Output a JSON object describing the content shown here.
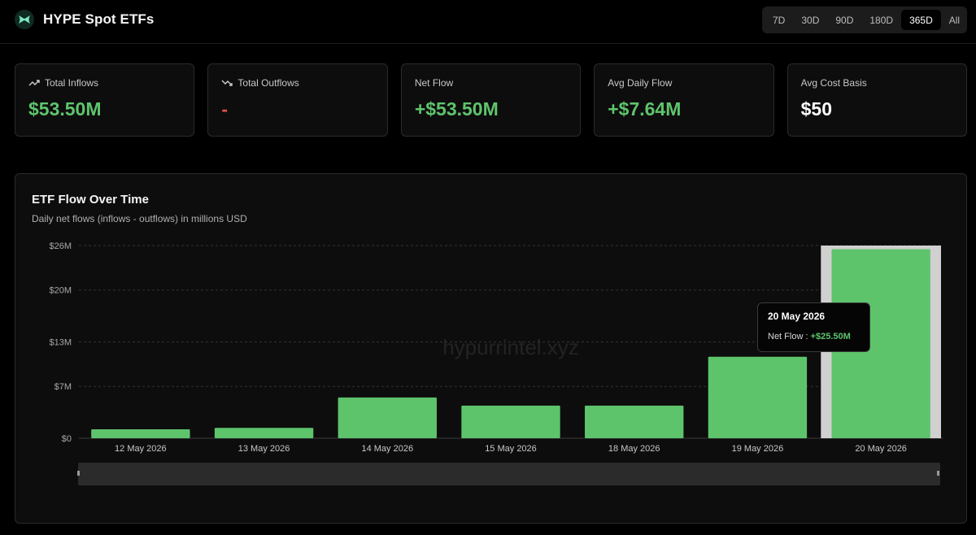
{
  "header": {
    "title": "HYPE Spot ETFs",
    "ranges": [
      "7D",
      "30D",
      "90D",
      "180D",
      "365D",
      "All"
    ],
    "active_range": "365D"
  },
  "cards": [
    {
      "label": "Total Inflows",
      "value": "$53.50M",
      "icon": "trending-up-icon",
      "tone": "green"
    },
    {
      "label": "Total Outflows",
      "value": "-",
      "icon": "trending-down-icon",
      "tone": "red"
    },
    {
      "label": "Net Flow",
      "value": "+$53.50M",
      "icon": "",
      "tone": "green"
    },
    {
      "label": "Avg Daily Flow",
      "value": "+$7.64M",
      "icon": "",
      "tone": "green"
    },
    {
      "label": "Avg Cost Basis",
      "value": "$50",
      "icon": "",
      "tone": "white"
    }
  ],
  "chart": {
    "title": "ETF Flow Over Time",
    "subtitle": "Daily net flows (inflows - outflows) in millions USD",
    "watermark": "hypurrintel.xyz"
  },
  "tooltip": {
    "date": "20 May 2026",
    "label": "Net Flow :",
    "value": "+$25.50M"
  },
  "colors": {
    "bar": "#5ec46c",
    "highlight": "#d0d0d0",
    "background": "#000000",
    "card": "#0d0d0d"
  },
  "chart_data": {
    "type": "bar",
    "categories": [
      "12 May 2026",
      "13 May 2026",
      "14 May 2026",
      "15 May 2026",
      "18 May 2026",
      "19 May 2026",
      "20 May 2026"
    ],
    "series": [
      {
        "values": [
          1.2,
          1.4,
          5.5,
          4.4,
          4.4,
          11.0,
          25.5
        ]
      }
    ],
    "ylim": [
      0,
      26
    ],
    "yticks": [
      0,
      7,
      13,
      20,
      26
    ],
    "ytick_labels": [
      "$0",
      "$7M",
      "$13M",
      "$20M",
      "$26M"
    ],
    "highlighted_category": "20 May 2026",
    "grid": true,
    "ylabel": "",
    "xlabel": ""
  }
}
